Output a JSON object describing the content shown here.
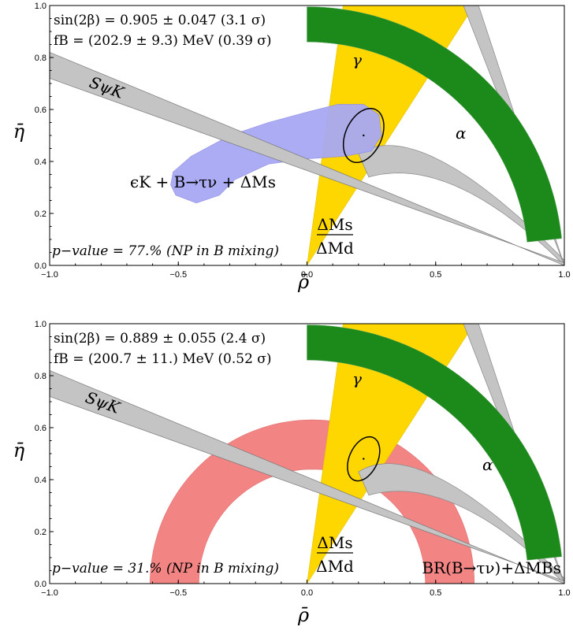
{
  "colors": {
    "gamma": "#ffd700",
    "deltaM": "#1b8a1b",
    "alpha": "#c4c4c4",
    "s_psik": "#c4c4c4",
    "eps_k": "#a8a8f4",
    "br": "#f28484",
    "ellipse": "#000000"
  },
  "chart_data": [
    {
      "type": "area",
      "panel": "top",
      "xlabel": "ρ̄",
      "ylabel": "η̄",
      "xlim": [
        -1.0,
        1.0
      ],
      "ylim": [
        0.0,
        1.0
      ],
      "x_ticks": [
        "−1.0",
        "−0.5",
        "0.0",
        "0.5",
        "1.0"
      ],
      "y_ticks": [
        "0.0",
        "0.2",
        "0.4",
        "0.6",
        "0.8",
        "1.0"
      ],
      "grid": false,
      "info_lines": [
        "sin(2β) = 0.905 ± 0.047 (3.1 σ)",
        "fB = (202.9 ± 9.3) MeV (0.39 σ)"
      ],
      "pvalue_text": "p−value =  77.% (NP in B mixing)",
      "labels": {
        "gamma": "γ",
        "alpha": "α",
        "s_psik": "SψK",
        "dm_num": "ΔMs",
        "dm_den": "ΔMd",
        "extra": "ϵK + B→τν + ΔMs"
      },
      "constraints": {
        "gamma_band": {
          "angle_deg": [
            57,
            82
          ]
        },
        "dm_ratio_band": {
          "r_inner": 0.86,
          "r_outer": 0.995
        },
        "alpha_band": {
          "upper_mid": [
            0.44,
            0.58
          ],
          "lower_mid": [
            0.56,
            0.43
          ]
        },
        "s_psik_band": {
          "top_edge": [
            [
              -1.0,
              0.82
            ],
            [
              1.0,
              0.0
            ]
          ],
          "bottom_edge": [
            [
              -1.0,
              0.72
            ],
            [
              1.0,
              0.01
            ]
          ]
        },
        "region": {
          "center": [
            0.0,
            0.42
          ],
          "extent_x": [
            -0.5,
            0.3
          ],
          "extent_y": [
            0.24,
            0.62
          ]
        }
      },
      "fit_ellipse": {
        "center": [
          0.22,
          0.5
        ],
        "semi_axes": [
          0.07,
          0.11
        ],
        "tilt_deg": -25
      }
    },
    {
      "type": "area",
      "panel": "bottom",
      "xlabel": "ρ̄",
      "ylabel": "η̄",
      "xlim": [
        -1.0,
        1.0
      ],
      "ylim": [
        0.0,
        1.0
      ],
      "x_ticks": [
        "−1.0",
        "−0.5",
        "0.0",
        "0.5",
        "1.0"
      ],
      "y_ticks": [
        "0.0",
        "0.2",
        "0.4",
        "0.6",
        "0.8",
        "1.0"
      ],
      "grid": false,
      "info_lines": [
        "sin(2β) = 0.889 ± 0.055 (2.4 σ)",
        "fB = (200.7 ± 11.) MeV (0.52 σ)"
      ],
      "pvalue_text": "p−value =  31.% (NP in B mixing)",
      "labels": {
        "gamma": "γ",
        "alpha": "α",
        "s_psik": "SψK",
        "dm_num": "ΔMs",
        "dm_den": "ΔMd",
        "extra": "BR(B→τν)+ΔMBs"
      },
      "constraints": {
        "gamma_band": {
          "angle_deg": [
            57,
            82
          ]
        },
        "dm_ratio_band": {
          "r_inner": 0.86,
          "r_outer": 0.995
        },
        "alpha_band": {
          "upper_mid": [
            0.44,
            0.58
          ],
          "lower_mid": [
            0.56,
            0.43
          ]
        },
        "s_psik_band": {
          "top_edge": [
            [
              -1.0,
              0.82
            ],
            [
              1.0,
              0.0
            ]
          ],
          "bottom_edge": [
            [
              -1.0,
              0.72
            ],
            [
              1.0,
              0.01
            ]
          ]
        },
        "region": {
          "center": [
            0.02,
            0.0
          ],
          "r_inner": 0.44,
          "r_outer": 0.63
        }
      },
      "fit_ellipse": {
        "center": [
          0.22,
          0.48
        ],
        "semi_axes": [
          0.055,
          0.09
        ],
        "tilt_deg": -25
      }
    }
  ]
}
